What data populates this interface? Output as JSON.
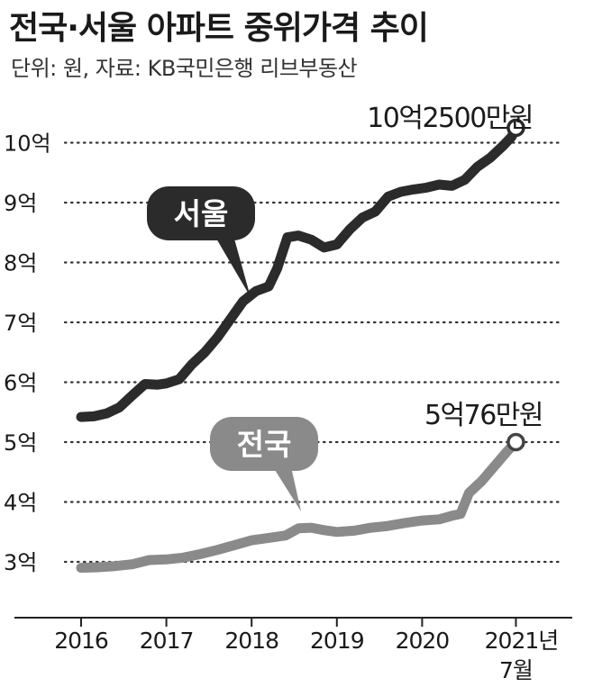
{
  "title": "전국·서울 아파트 중위가격 추이",
  "subtitle": "단위: 원, 자료: KB국민은행 리브부동산",
  "chart_data": {
    "type": "line",
    "x_tick_labels": [
      "2016",
      "2017",
      "2018",
      "2019",
      "2020",
      "2021년",
      "7월"
    ],
    "y_tick_labels": [
      "3억",
      "4억",
      "5억",
      "6억",
      "7억",
      "8억",
      "9억",
      "10억"
    ],
    "ylim": [
      2.5,
      10.5
    ],
    "grid": true,
    "grid_style": "dotted",
    "series": [
      {
        "name": "서울",
        "color": "#2b2b2b",
        "end_label": "10억2500만원",
        "points": [
          [
            2016.0,
            5.42
          ],
          [
            2016.15,
            5.43
          ],
          [
            2016.3,
            5.48
          ],
          [
            2016.45,
            5.58
          ],
          [
            2016.6,
            5.78
          ],
          [
            2016.75,
            5.97
          ],
          [
            2016.9,
            5.96
          ],
          [
            2017.0,
            5.98
          ],
          [
            2017.15,
            6.05
          ],
          [
            2017.3,
            6.3
          ],
          [
            2017.45,
            6.5
          ],
          [
            2017.6,
            6.75
          ],
          [
            2017.75,
            7.05
          ],
          [
            2017.9,
            7.35
          ],
          [
            2018.05,
            7.52
          ],
          [
            2018.2,
            7.6
          ],
          [
            2018.3,
            7.9
          ],
          [
            2018.42,
            8.42
          ],
          [
            2018.55,
            8.45
          ],
          [
            2018.7,
            8.38
          ],
          [
            2018.85,
            8.25
          ],
          [
            2019.0,
            8.3
          ],
          [
            2019.15,
            8.55
          ],
          [
            2019.3,
            8.75
          ],
          [
            2019.45,
            8.85
          ],
          [
            2019.6,
            9.1
          ],
          [
            2019.75,
            9.18
          ],
          [
            2019.9,
            9.22
          ],
          [
            2020.05,
            9.25
          ],
          [
            2020.2,
            9.3
          ],
          [
            2020.35,
            9.28
          ],
          [
            2020.5,
            9.38
          ],
          [
            2020.65,
            9.6
          ],
          [
            2020.8,
            9.75
          ],
          [
            2020.95,
            9.95
          ],
          [
            2021.05,
            10.1
          ],
          [
            2021.1,
            10.25
          ]
        ]
      },
      {
        "name": "전국",
        "color": "#8a8a8a",
        "end_label": "5억76만원",
        "points": [
          [
            2016.0,
            2.9
          ],
          [
            2016.2,
            2.91
          ],
          [
            2016.4,
            2.93
          ],
          [
            2016.6,
            2.96
          ],
          [
            2016.8,
            3.03
          ],
          [
            2017.0,
            3.04
          ],
          [
            2017.2,
            3.07
          ],
          [
            2017.4,
            3.13
          ],
          [
            2017.6,
            3.2
          ],
          [
            2017.8,
            3.28
          ],
          [
            2018.0,
            3.36
          ],
          [
            2018.2,
            3.4
          ],
          [
            2018.4,
            3.44
          ],
          [
            2018.55,
            3.56
          ],
          [
            2018.7,
            3.57
          ],
          [
            2018.85,
            3.53
          ],
          [
            2019.0,
            3.5
          ],
          [
            2019.2,
            3.52
          ],
          [
            2019.4,
            3.57
          ],
          [
            2019.6,
            3.6
          ],
          [
            2019.8,
            3.65
          ],
          [
            2020.0,
            3.69
          ],
          [
            2020.2,
            3.71
          ],
          [
            2020.35,
            3.77
          ],
          [
            2020.45,
            3.8
          ],
          [
            2020.55,
            4.15
          ],
          [
            2020.7,
            4.35
          ],
          [
            2020.85,
            4.6
          ],
          [
            2021.0,
            4.85
          ],
          [
            2021.1,
            5.0
          ]
        ]
      }
    ]
  }
}
